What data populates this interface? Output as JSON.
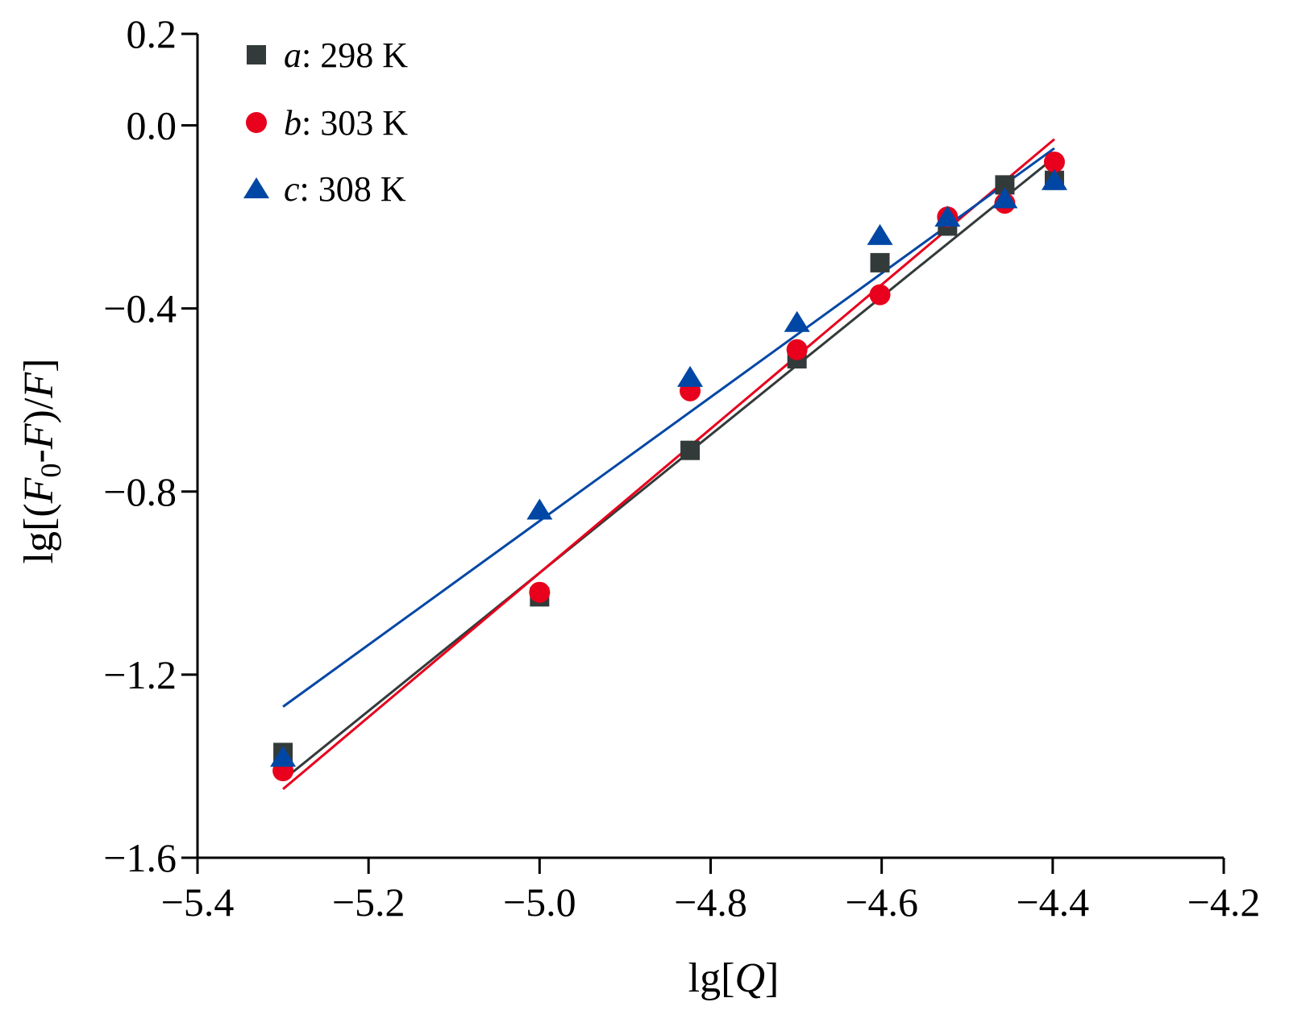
{
  "chart_data": {
    "type": "scatter",
    "xlim": [
      -5.4,
      -4.2
    ],
    "ylim": [
      -1.6,
      0.2
    ],
    "xticks": [
      -5.4,
      -5.2,
      -5.0,
      -4.8,
      -4.6,
      -4.4,
      -4.2
    ],
    "yticks": [
      0.2,
      0.0,
      -0.4,
      -0.8,
      -1.2,
      -1.6
    ],
    "xtick_labels": [
      "−5.4",
      "−5.2",
      "−5.0",
      "−4.8",
      "−4.6",
      "−4.4",
      "−4.2"
    ],
    "ytick_labels": [
      "0.2",
      "0.0",
      "−0.4",
      "−0.8",
      "−1.2",
      "−1.6"
    ],
    "xlabel": {
      "prefix": "lg[",
      "var": "Q",
      "suffix": "]"
    },
    "ylabel": {
      "p1": "lg[(",
      "v1": "F",
      "sub": "0",
      "p2": "-",
      "v2": "F",
      "p3": ")/",
      "v3": "F",
      "p4": "]"
    },
    "grid": false,
    "legend_position": "top-left",
    "series": [
      {
        "legend_letter": "a",
        "legend_rest": ": 298 K",
        "marker": "square",
        "color": "#333a3a",
        "x": [
          -5.3,
          -5.0,
          -4.824,
          -4.699,
          -4.602,
          -4.523,
          -4.456,
          -4.398
        ],
        "y": [
          -1.37,
          -1.03,
          -0.71,
          -0.51,
          -0.3,
          -0.22,
          -0.13,
          -0.12
        ],
        "fit": {
          "x": [
            -5.3,
            -4.398
          ],
          "y": [
            -1.43,
            -0.07
          ]
        }
      },
      {
        "legend_letter": "b",
        "legend_rest": ": 303 K",
        "marker": "circle",
        "color": "#e8001c",
        "x": [
          -5.3,
          -5.0,
          -4.824,
          -4.699,
          -4.602,
          -4.523,
          -4.456,
          -4.398
        ],
        "y": [
          -1.41,
          -1.02,
          -0.58,
          -0.49,
          -0.37,
          -0.2,
          -0.17,
          -0.08
        ],
        "fit": {
          "x": [
            -5.3,
            -4.398
          ],
          "y": [
            -1.45,
            -0.03
          ]
        }
      },
      {
        "legend_letter": "c",
        "legend_rest": ": 308 K",
        "marker": "triangle",
        "color": "#0047a5",
        "x": [
          -5.3,
          -5.0,
          -4.824,
          -4.699,
          -4.602,
          -4.523,
          -4.456,
          -4.398
        ],
        "y": [
          -1.38,
          -0.84,
          -0.55,
          -0.43,
          -0.24,
          -0.2,
          -0.16,
          -0.12
        ],
        "fit": {
          "x": [
            -5.3,
            -4.398
          ],
          "y": [
            -1.27,
            -0.05
          ]
        }
      }
    ]
  }
}
